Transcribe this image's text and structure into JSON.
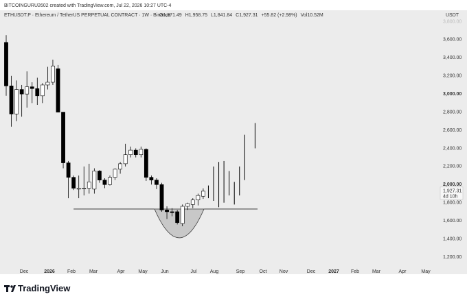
{
  "header": {
    "credit": "BITCOINGURU2602 created with TradingView.com, Jul 22, 2026 10:27 UTC-4",
    "symbol": "ETHUSDT.P · Ethereum / TetherUS PERPETUAL CONTRACT · 1W · Binance",
    "ohlc": [
      "O1,871.49",
      "H1,958.75",
      "L1,841.84",
      "C1,927.31",
      "+55.82 (+2.98%)",
      "Vol10.52M"
    ],
    "currency": "USDT"
  },
  "footer": {
    "brand": "TradingView"
  },
  "chart_data": {
    "type": "candlestick",
    "open": [
      3570,
      3090,
      2780,
      3050,
      3000,
      3080,
      3060,
      2980,
      3100,
      3130,
      3280,
      2800,
      2240,
      2080,
      1950,
      1960,
      1960,
      1950,
      2150,
      2050,
      2000,
      2080,
      2170,
      2230,
      2330,
      2380,
      2330,
      2390,
      2080,
      2050,
      2000,
      1720,
      1700,
      1700,
      1570,
      1760,
      1780,
      1830,
      1871.49,
      null,
      null,
      null,
      null,
      null,
      null,
      null,
      null,
      null,
      null
    ],
    "high": [
      3650,
      3200,
      3150,
      3100,
      3250,
      3130,
      3180,
      3120,
      3300,
      3380,
      3320,
      2800,
      2260,
      2100,
      2100,
      2200,
      2230,
      2180,
      2160,
      2070,
      2100,
      2180,
      2250,
      2450,
      2420,
      2400,
      2420,
      2400,
      2100,
      2070,
      2020,
      1760,
      1740,
      1720,
      1780,
      1800,
      1850,
      1900,
      1958.75,
      null,
      null,
      null,
      null,
      null,
      null,
      null,
      null,
      null,
      null
    ],
    "low": [
      2980,
      2640,
      2700,
      2750,
      2850,
      2900,
      2880,
      2900,
      3050,
      3100,
      2800,
      2180,
      1850,
      1940,
      1850,
      1880,
      1900,
      1900,
      2020,
      1960,
      1990,
      2050,
      2120,
      2200,
      2300,
      2300,
      2300,
      2040,
      2000,
      1950,
      1700,
      1620,
      1650,
      1560,
      1540,
      1720,
      1740,
      1770,
      1841.84,
      null,
      null,
      null,
      null,
      null,
      null,
      null,
      null,
      null,
      null
    ],
    "close": [
      3090,
      2780,
      3050,
      3000,
      3080,
      3060,
      2980,
      3100,
      3130,
      3310,
      2800,
      2240,
      2080,
      1960,
      1960,
      1960,
      2030,
      2150,
      2050,
      2000,
      2080,
      2170,
      2230,
      2330,
      2380,
      2330,
      2390,
      2080,
      2050,
      2000,
      1720,
      1700,
      1690,
      1580,
      1760,
      1790,
      1830,
      1880,
      1927.31,
      null,
      null,
      null,
      null,
      null,
      null,
      null,
      null,
      null,
      null
    ],
    "projection_low": [
      null,
      null,
      null,
      null,
      null,
      null,
      null,
      null,
      null,
      null,
      null,
      null,
      null,
      null,
      null,
      null,
      null,
      null,
      null,
      null,
      null,
      null,
      null,
      null,
      null,
      null,
      null,
      null,
      null,
      null,
      null,
      null,
      null,
      null,
      null,
      null,
      null,
      null,
      null,
      1850,
      1820,
      1750,
      1800,
      1880,
      1780,
      1880,
      2050,
      null,
      2400
    ],
    "projection_high": [
      null,
      null,
      null,
      null,
      null,
      null,
      null,
      null,
      null,
      null,
      null,
      null,
      null,
      null,
      null,
      null,
      null,
      null,
      null,
      null,
      null,
      null,
      null,
      null,
      null,
      null,
      null,
      null,
      null,
      null,
      null,
      null,
      null,
      null,
      null,
      null,
      null,
      null,
      null,
      1990,
      2200,
      2250,
      2260,
      2150,
      2030,
      2200,
      2550,
      null,
      2680
    ],
    "up_color": "#ffffff",
    "down_color": "#000000",
    "support_level": 1730,
    "last_price": 1927.31,
    "last_price_label": "1,927.31",
    "countdown": "4d 10h",
    "ylim": [
      1124,
      3902
    ],
    "yticks": [
      {
        "value": 1200,
        "label": "1,200.00"
      },
      {
        "value": 1400,
        "label": "1,400.00"
      },
      {
        "value": 1600,
        "label": "1,600.00"
      },
      {
        "value": 1800,
        "label": "1,800.00"
      },
      {
        "value": 2000,
        "label": "2,000.00"
      },
      {
        "value": 2200,
        "label": "2,200.00"
      },
      {
        "value": 2400,
        "label": "2,400.00"
      },
      {
        "value": 2600,
        "label": "2,600.00"
      },
      {
        "value": 2800,
        "label": "2,800.00"
      },
      {
        "value": 3000,
        "label": "3,000.00"
      },
      {
        "value": 3200,
        "label": "3,200.00"
      },
      {
        "value": 3400,
        "label": "3,400.00"
      },
      {
        "value": 3600,
        "label": "3,600.00"
      },
      {
        "value": 3800,
        "label": "3,800.00"
      }
    ],
    "xtick_labels": [
      "Dec",
      "2026",
      "Feb",
      "Mar",
      "Apr",
      "May",
      "Jun",
      "Jul",
      "Aug",
      "Sep",
      "Oct",
      "Nov",
      "Dec",
      "2027",
      "Feb",
      "Mar",
      "Apr",
      "May"
    ]
  }
}
